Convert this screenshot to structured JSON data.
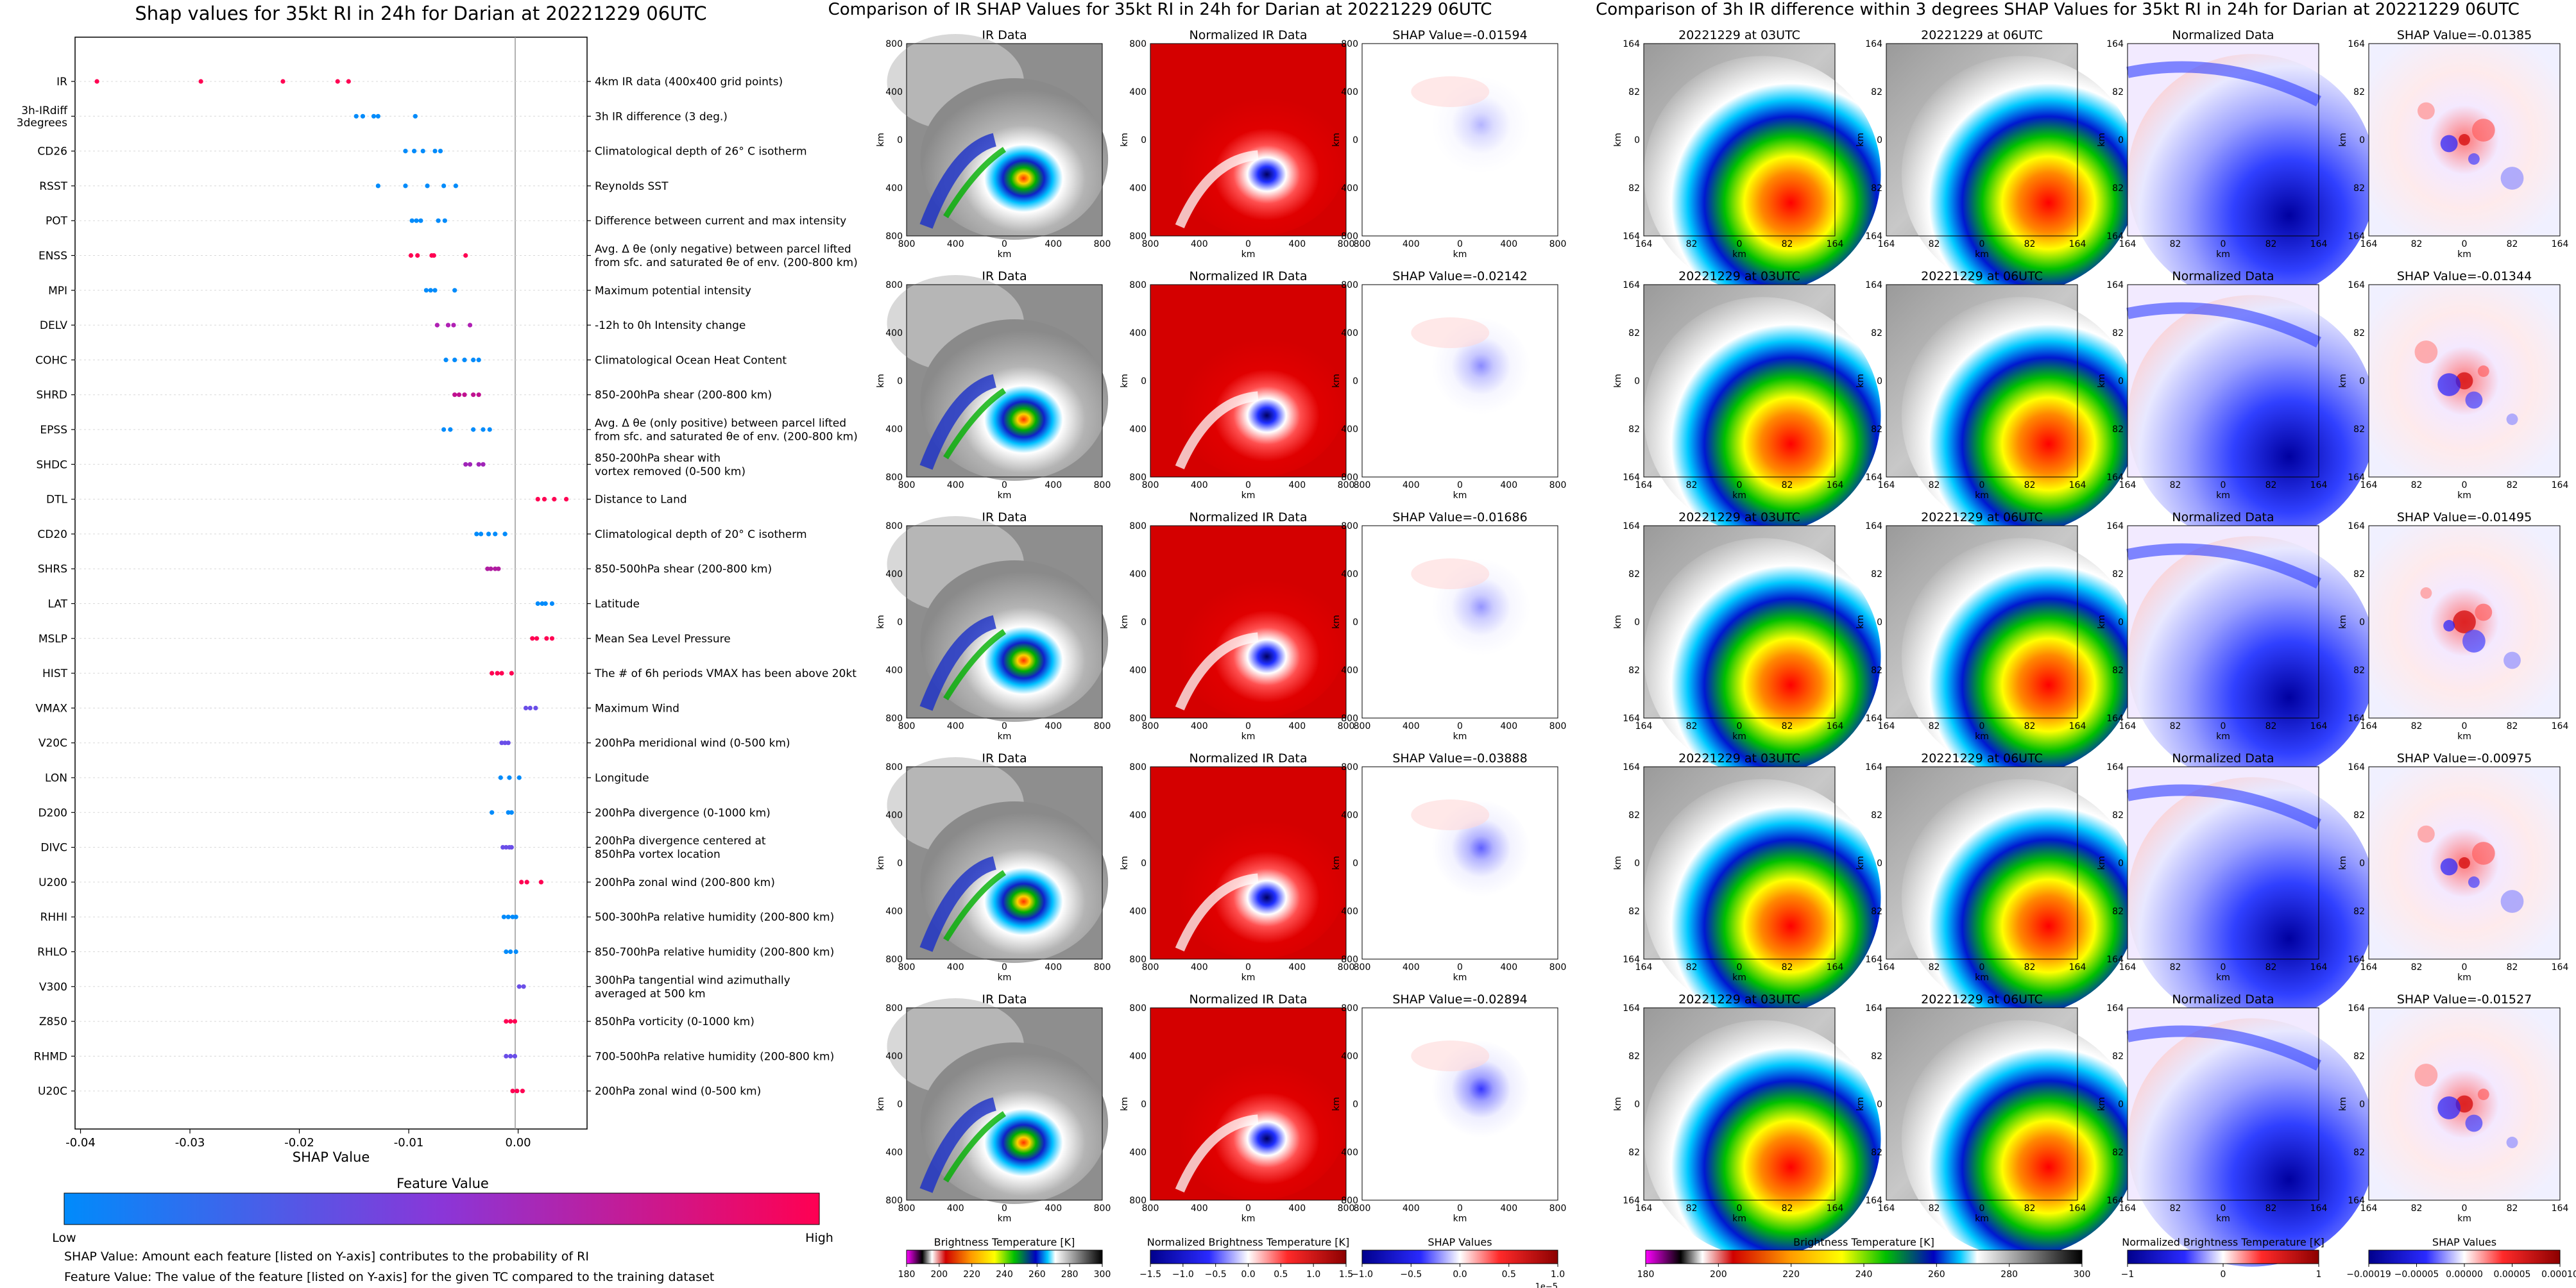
{
  "beeswarm": {
    "title": "Shap values for 35kt RI in 24h for Darian at 20221229 06UTC",
    "xlabel": "SHAP Value",
    "x_ticks": [
      "-0.04",
      "-0.03",
      "-0.02",
      "-0.01",
      "0.00"
    ],
    "colorbar_title": "Feature Value",
    "colorbar_low": "Low",
    "colorbar_high": "High",
    "colorbar_colors": [
      "#008bfb",
      "#6a4ee8",
      "#ff0052"
    ],
    "note_line1": "SHAP Value: Amount each feature [listed on Y-axis] contributes to the probability of RI",
    "note_line2": "Feature Value: The value of the feature [listed on Y-axis] for the given TC compared to the training dataset"
  },
  "chart_data": [
    {
      "type": "scatter",
      "title": "Shap values for 35kt RI in 24h for Darian at 20221229 06UTC",
      "xlabel": "SHAP Value",
      "xlim": [
        -0.0405,
        0.0063
      ],
      "colorbar_label": "Feature Value",
      "features": [
        {
          "name": "IR",
          "desc": "4km IR data (400x400 grid points)",
          "values": [
            -0.0385,
            -0.029,
            -0.0215,
            -0.0165,
            -0.0155
          ],
          "color": "#ff0052"
        },
        {
          "name": "3h-IRdiff\n3degrees",
          "desc": "3h IR difference (3 deg.)",
          "values": [
            -0.0148,
            -0.0142,
            -0.0132,
            -0.0128,
            -0.0094
          ],
          "color": "#008bfb"
        },
        {
          "name": "CD26",
          "desc": "Climatological depth of 26° C isotherm",
          "values": [
            -0.0103,
            -0.0095,
            -0.0087,
            -0.0076,
            -0.0071
          ],
          "color": "#008bfb"
        },
        {
          "name": "RSST",
          "desc": "Reynolds SST",
          "values": [
            -0.0128,
            -0.0103,
            -0.0083,
            -0.0068,
            -0.0057
          ],
          "color": "#008bfb"
        },
        {
          "name": "POT",
          "desc": "Difference between current and max intensity",
          "values": [
            -0.0097,
            -0.0093,
            -0.0089,
            -0.0073,
            -0.0067
          ],
          "color": "#008bfb"
        },
        {
          "name": "ENSS",
          "desc": "Avg. Δ θe (only negative) between parcel lifted\nfrom sfc. and saturated θe of env. (200-800 km)",
          "values": [
            -0.0098,
            -0.0092,
            -0.0079,
            -0.0077,
            -0.0048
          ],
          "color": "#ff0052"
        },
        {
          "name": "MPI",
          "desc": "Maximum potential intensity",
          "values": [
            -0.0084,
            -0.008,
            -0.0076,
            -0.0058
          ],
          "color": "#008bfb"
        },
        {
          "name": "DELV",
          "desc": "-12h to 0h Intensity change",
          "values": [
            -0.0074,
            -0.0064,
            -0.0059,
            -0.0044
          ],
          "color": "#b020b4"
        },
        {
          "name": "COHC",
          "desc": "Climatological Ocean Heat Content",
          "values": [
            -0.0066,
            -0.0058,
            -0.0049,
            -0.0041,
            -0.0036
          ],
          "color": "#008bfb"
        },
        {
          "name": "SHRD",
          "desc": "850-200hPa shear (200-800 km)",
          "values": [
            -0.0058,
            -0.0054,
            -0.0049,
            -0.0041,
            -0.0036
          ],
          "color": "#c01090"
        },
        {
          "name": "EPSS",
          "desc": "Avg. Δ θe (only positive) between parcel lifted\nfrom sfc. and saturated θe of env. (200-800 km)",
          "values": [
            -0.0068,
            -0.0062,
            -0.0041,
            -0.0032,
            -0.0026
          ],
          "color": "#008bfb"
        },
        {
          "name": "SHDC",
          "desc": "850-200hPa shear with\nvortex removed (0-500 km)",
          "values": [
            -0.0048,
            -0.0044,
            -0.0036,
            -0.0032
          ],
          "color": "#a024b8"
        },
        {
          "name": "DTL",
          "desc": "Distance to Land",
          "values": [
            0.0018,
            0.0024,
            0.0033,
            0.0044
          ],
          "color": "#ff0052"
        },
        {
          "name": "CD20",
          "desc": "Climatological depth of 20° C isotherm",
          "values": [
            -0.0038,
            -0.0034,
            -0.0027,
            -0.0021,
            -0.0012
          ],
          "color": "#008bfb"
        },
        {
          "name": "SHRS",
          "desc": "850-500hPa shear (200-800 km)",
          "values": [
            -0.0028,
            -0.0025,
            -0.0021,
            -0.0018
          ],
          "color": "#b01ca0"
        },
        {
          "name": "LAT",
          "desc": "Latitude",
          "values": [
            0.0018,
            0.0022,
            0.0025,
            0.0031
          ],
          "color": "#008bfb"
        },
        {
          "name": "MSLP",
          "desc": "Mean Sea Level Pressure",
          "values": [
            0.0013,
            0.0017,
            0.0026,
            0.0031
          ],
          "color": "#ff0052"
        },
        {
          "name": "HIST",
          "desc": "The # of 6h periods VMAX has been above 20kt",
          "values": [
            -0.0024,
            -0.0019,
            -0.0015,
            -0.0006
          ],
          "color": "#ff0052"
        },
        {
          "name": "VMAX",
          "desc": "Maximum Wind",
          "values": [
            0.0007,
            0.0011,
            0.0016
          ],
          "color": "#6a4ee8"
        },
        {
          "name": "V20C",
          "desc": "200hPa meridional wind (0-500 km)",
          "values": [
            -0.0015,
            -0.0012,
            -0.0009
          ],
          "color": "#6a4ee8"
        },
        {
          "name": "LON",
          "desc": "Longitude",
          "values": [
            -0.0016,
            -0.0008,
            0.0001
          ],
          "color": "#008bfb"
        },
        {
          "name": "D200",
          "desc": "200hPa divergence (0-1000 km)",
          "values": [
            -0.0024,
            -0.0009,
            -0.0006
          ],
          "color": "#008bfb"
        },
        {
          "name": "DIVC",
          "desc": "200hPa divergence centered at\n850hPa vortex location",
          "values": [
            -0.0014,
            -0.0011,
            -0.0008,
            -0.0006
          ],
          "color": "#6a4ee8"
        },
        {
          "name": "U200",
          "desc": "200hPa zonal wind (200-800 km)",
          "values": [
            0.0003,
            0.0008,
            0.0021
          ],
          "color": "#ff0052"
        },
        {
          "name": "RHHI",
          "desc": "500-300hPa relative humidity (200-800 km)",
          "values": [
            -0.0013,
            -0.0009,
            -0.0005,
            -0.0002
          ],
          "color": "#008bfb"
        },
        {
          "name": "RHLO",
          "desc": "850-700hPa relative humidity (200-800 km)",
          "values": [
            -0.0011,
            -0.0007,
            -0.0002
          ],
          "color": "#008bfb"
        },
        {
          "name": "V300",
          "desc": "300hPa tangential wind azimuthally\naveraged at 500 km",
          "values": [
            0.0001,
            0.0005
          ],
          "color": "#6a4ee8"
        },
        {
          "name": "Z850",
          "desc": "850hPa vorticity (0-1000 km)",
          "values": [
            -0.0011,
            -0.0007,
            -0.0003
          ],
          "color": "#ff0052"
        },
        {
          "name": "RHMD",
          "desc": "700-500hPa relative humidity (200-800 km)",
          "values": [
            -0.0011,
            -0.0007,
            -0.0003
          ],
          "color": "#6a4ee8"
        },
        {
          "name": "U20C",
          "desc": "200hPa zonal wind (0-500 km)",
          "values": [
            -0.0005,
            -0.0001,
            0.0004
          ],
          "color": "#ff0052"
        }
      ]
    },
    {
      "type": "heatmap",
      "title": "Comparison of IR SHAP Values for 35kt RI in 24h for Darian at 20221229 06UTC",
      "columns": [
        "IR Data",
        "Normalized IR Data"
      ],
      "shap_titles": [
        "SHAP Value=-0.01594",
        "SHAP Value=-0.02142",
        "SHAP Value=-0.01686",
        "SHAP Value=-0.03888",
        "SHAP Value=-0.02894"
      ],
      "axis_ticks": [
        "800",
        "400",
        "0",
        "400",
        "800"
      ],
      "axis_label": "km",
      "colorbars": [
        {
          "label": "Brightness Temperature [K]",
          "ticks": [
            "180",
            "200",
            "220",
            "240",
            "260",
            "280",
            "300"
          ]
        },
        {
          "label": "Normalized Brightness Temperature [K]",
          "ticks": [
            "−1.5",
            "−1.0",
            "−0.5",
            "0.0",
            "0.5",
            "1.0",
            "1.5"
          ]
        },
        {
          "label": "SHAP Values",
          "ticks": [
            "−1.0",
            "−0.5",
            "0.0",
            "0.5",
            "1.0"
          ],
          "offset": "1e−5"
        }
      ]
    },
    {
      "type": "heatmap",
      "title": "Comparison of 3h IR difference within 3 degrees SHAP Values for 35kt RI in 24h for Darian at 20221229 06UTC",
      "columns": [
        "20221229 at 03UTC",
        "20221229 at 06UTC",
        "Normalized Data"
      ],
      "shap_titles": [
        "SHAP Value=-0.01385",
        "SHAP Value=-0.01344",
        "SHAP Value=-0.01495",
        "SHAP Value=-0.00975",
        "SHAP Value=-0.01527"
      ],
      "axis_ticks": [
        "164",
        "82",
        "0",
        "82",
        "164"
      ],
      "axis_label": "km",
      "colorbars": [
        {
          "label": "Brightness Temperature [K]",
          "ticks": [
            "180",
            "200",
            "220",
            "240",
            "260",
            "280",
            "300"
          ]
        },
        {
          "label": "Normalized Brightness Temperature [K]",
          "ticks": [
            "−1",
            "0",
            "1"
          ]
        },
        {
          "label": "SHAP Values",
          "ticks": [
            "−0.00019",
            "−0.00005",
            "0.00000",
            "0.00005",
            "0.00010"
          ]
        }
      ]
    }
  ]
}
